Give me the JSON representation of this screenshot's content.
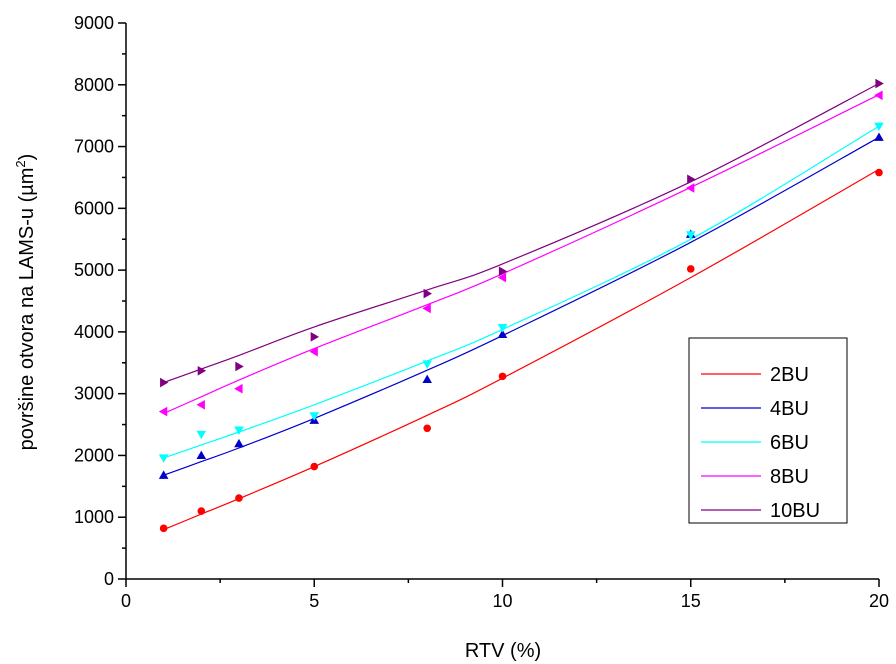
{
  "chart_data": {
    "type": "scatter",
    "xlabel": "RTV (%)",
    "ylabel": {
      "main": "površine otvora na LAMS-u (µm",
      "sup": "2",
      "end": ")"
    },
    "xlim": [
      0,
      20
    ],
    "ylim": [
      0,
      9000
    ],
    "x_ticks": [
      0,
      5,
      10,
      15,
      20
    ],
    "y_ticks": [
      0,
      1000,
      2000,
      3000,
      4000,
      5000,
      6000,
      7000,
      8000,
      9000
    ],
    "grid": false,
    "legend_position": "right",
    "series": [
      {
        "name": "2BU",
        "color": "#ff0000",
        "marker": "circle",
        "x": [
          1,
          2,
          3,
          5,
          8,
          10,
          15,
          20
        ],
        "values": [
          820,
          1100,
          1310,
          1820,
          2440,
          3280,
          5020,
          6580
        ],
        "fit": [
          800,
          1050,
          1300,
          1820,
          2650,
          3250,
          4880,
          6630
        ]
      },
      {
        "name": "4BU",
        "color": "#0000cc",
        "marker": "triangle-up",
        "x": [
          1,
          2,
          3,
          5,
          8,
          10,
          15,
          20
        ],
        "values": [
          1680,
          2000,
          2190,
          2570,
          3230,
          3960,
          5580,
          7150
        ],
        "fit": [
          1680,
          1900,
          2120,
          2600,
          3380,
          3940,
          5450,
          7150
        ]
      },
      {
        "name": "6BU",
        "color": "#00ffff",
        "marker": "triangle-down",
        "x": [
          1,
          2,
          3,
          5,
          8,
          10,
          15,
          20
        ],
        "values": [
          1960,
          2340,
          2410,
          2640,
          3480,
          4070,
          5570,
          7330
        ],
        "fit": [
          1960,
          2170,
          2380,
          2820,
          3530,
          4040,
          5500,
          7330
        ]
      },
      {
        "name": "8BU",
        "color": "#ff00ff",
        "marker": "triangle-left",
        "x": [
          1,
          2,
          3,
          5,
          8,
          10,
          15,
          20
        ],
        "values": [
          2710,
          2820,
          3080,
          3680,
          4380,
          4880,
          6330,
          7830
        ],
        "fit": [
          2680,
          2950,
          3220,
          3730,
          4440,
          4940,
          6340,
          7840
        ]
      },
      {
        "name": "10BU",
        "color": "#800080",
        "marker": "triangle-right",
        "x": [
          1,
          2,
          3,
          5,
          8,
          10,
          15,
          20
        ],
        "values": [
          3180,
          3370,
          3440,
          3920,
          4620,
          4980,
          6470,
          8020
        ],
        "fit": [
          3180,
          3400,
          3620,
          4080,
          4680,
          5100,
          6430,
          8020
        ]
      }
    ]
  }
}
